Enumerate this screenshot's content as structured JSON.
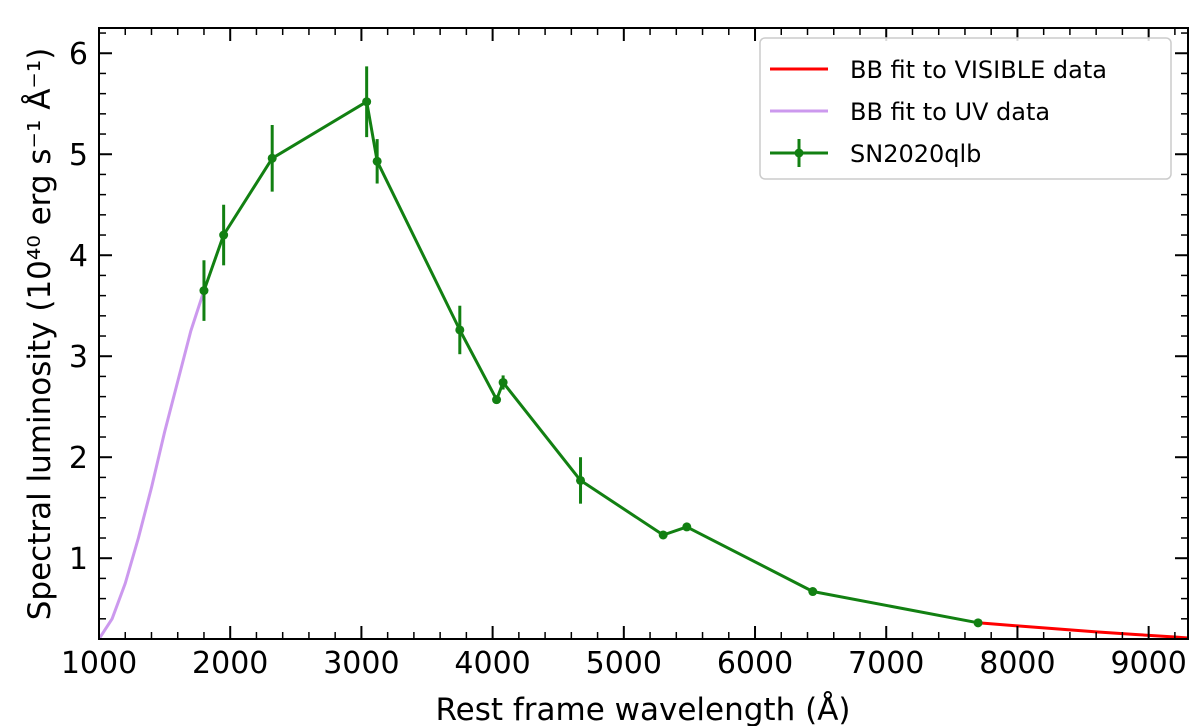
{
  "chart_data": {
    "type": "line",
    "xlabel": "Rest frame wavelength (Å)",
    "ylabel": "Spectral luminosity (10⁴⁰ erg s⁻¹ Å⁻¹)",
    "xlim": [
      1000,
      9300
    ],
    "ylim": [
      0.2,
      6.25
    ],
    "x_ticks": [
      1000,
      2000,
      3000,
      4000,
      5000,
      6000,
      7000,
      8000,
      9000
    ],
    "x_tick_labels": [
      "1000",
      "2000",
      "3000",
      "4000",
      "5000",
      "6000",
      "7000",
      "8000",
      "9000"
    ],
    "y_ticks": [
      1,
      2,
      3,
      4,
      5,
      6
    ],
    "y_tick_labels": [
      "1",
      "2",
      "3",
      "4",
      "5",
      "6"
    ],
    "grid": false,
    "legend_position": "top-right",
    "colors": {
      "visible_fit": "#ff0000",
      "uv_fit": "#cc99ee",
      "data": "#128012"
    },
    "series": [
      {
        "name": "BB fit to VISIBLE data",
        "type": "line",
        "x": [
          7700,
          8000,
          8300,
          8600,
          8900,
          9200,
          9300
        ],
        "y": [
          0.36,
          0.33,
          0.3,
          0.27,
          0.245,
          0.22,
          0.21
        ]
      },
      {
        "name": "BB fit to UV data",
        "type": "line",
        "x": [
          1000,
          1100,
          1200,
          1300,
          1400,
          1500,
          1600,
          1700,
          1800
        ],
        "y": [
          0.2,
          0.4,
          0.75,
          1.2,
          1.7,
          2.25,
          2.75,
          3.25,
          3.65
        ]
      },
      {
        "name": "SN2020qlb",
        "type": "errorbar",
        "x": [
          1800,
          1950,
          2320,
          3040,
          3120,
          3750,
          4030,
          4080,
          4670,
          5300,
          5480,
          6440,
          7700
        ],
        "y": [
          3.65,
          4.2,
          4.96,
          5.52,
          4.93,
          3.26,
          2.57,
          2.74,
          1.77,
          1.23,
          1.31,
          0.67,
          0.36
        ],
        "yerr": [
          0.3,
          0.3,
          0.33,
          0.35,
          0.22,
          0.24,
          0.02,
          0.07,
          0.23,
          0.02,
          0.02,
          0.02,
          0.02
        ]
      }
    ]
  }
}
